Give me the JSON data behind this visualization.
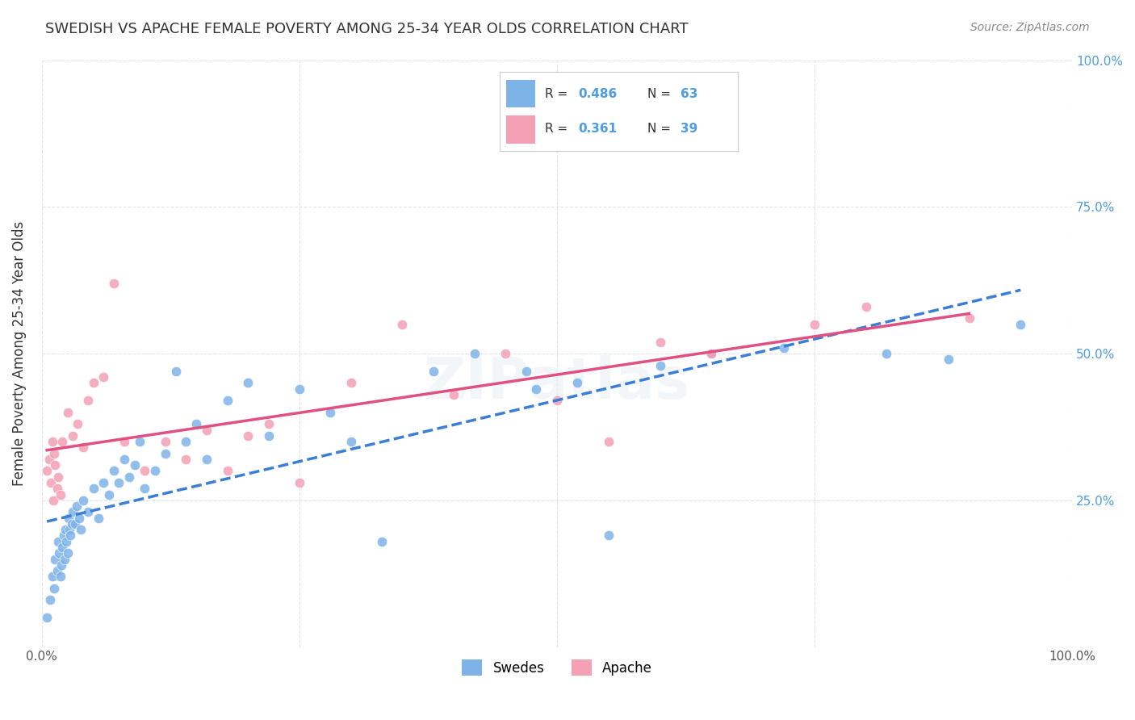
{
  "title": "SWEDISH VS APACHE FEMALE POVERTY AMONG 25-34 YEAR OLDS CORRELATION CHART",
  "source": "Source: ZipAtlas.com",
  "ylabel": "Female Poverty Among 25-34 Year Olds",
  "xlim": [
    0,
    1
  ],
  "ylim": [
    0,
    1
  ],
  "legend_r1": "0.486",
  "legend_n1": "63",
  "legend_r2": "0.361",
  "legend_n2": "39",
  "swedes_color": "#7eb3e8",
  "apache_color": "#f4a0b5",
  "swedes_line_color": "#3a7fd5",
  "apache_line_color": "#e05080",
  "swedes_x": [
    0.005,
    0.008,
    0.01,
    0.012,
    0.013,
    0.015,
    0.016,
    0.017,
    0.018,
    0.019,
    0.02,
    0.021,
    0.022,
    0.023,
    0.024,
    0.025,
    0.026,
    0.027,
    0.028,
    0.029,
    0.03,
    0.032,
    0.034,
    0.036,
    0.038,
    0.04,
    0.045,
    0.05,
    0.055,
    0.06,
    0.065,
    0.07,
    0.075,
    0.08,
    0.085,
    0.09,
    0.095,
    0.1,
    0.11,
    0.12,
    0.13,
    0.14,
    0.15,
    0.16,
    0.18,
    0.2,
    0.22,
    0.25,
    0.28,
    0.3,
    0.33,
    0.38,
    0.42,
    0.47,
    0.48,
    0.52,
    0.55,
    0.6,
    0.65,
    0.72,
    0.82,
    0.88,
    0.95
  ],
  "swedes_y": [
    0.05,
    0.08,
    0.12,
    0.1,
    0.15,
    0.13,
    0.18,
    0.16,
    0.12,
    0.14,
    0.17,
    0.19,
    0.15,
    0.2,
    0.18,
    0.16,
    0.22,
    0.2,
    0.19,
    0.21,
    0.23,
    0.21,
    0.24,
    0.22,
    0.2,
    0.25,
    0.23,
    0.27,
    0.22,
    0.28,
    0.26,
    0.3,
    0.28,
    0.32,
    0.29,
    0.31,
    0.35,
    0.27,
    0.3,
    0.33,
    0.47,
    0.35,
    0.38,
    0.32,
    0.42,
    0.45,
    0.36,
    0.44,
    0.4,
    0.35,
    0.18,
    0.47,
    0.5,
    0.47,
    0.44,
    0.45,
    0.19,
    0.48,
    0.5,
    0.51,
    0.5,
    0.49,
    0.55
  ],
  "apache_x": [
    0.005,
    0.007,
    0.009,
    0.01,
    0.011,
    0.012,
    0.013,
    0.015,
    0.016,
    0.018,
    0.02,
    0.025,
    0.03,
    0.035,
    0.04,
    0.045,
    0.05,
    0.06,
    0.07,
    0.08,
    0.1,
    0.12,
    0.14,
    0.16,
    0.18,
    0.2,
    0.22,
    0.25,
    0.3,
    0.35,
    0.4,
    0.45,
    0.5,
    0.55,
    0.6,
    0.65,
    0.75,
    0.8,
    0.9
  ],
  "apache_y": [
    0.3,
    0.32,
    0.28,
    0.35,
    0.25,
    0.33,
    0.31,
    0.27,
    0.29,
    0.26,
    0.35,
    0.4,
    0.36,
    0.38,
    0.34,
    0.42,
    0.45,
    0.46,
    0.62,
    0.35,
    0.3,
    0.35,
    0.32,
    0.37,
    0.3,
    0.36,
    0.38,
    0.28,
    0.45,
    0.55,
    0.43,
    0.5,
    0.42,
    0.35,
    0.52,
    0.5,
    0.55,
    0.58,
    0.56
  ],
  "watermark": "ZIPatlas",
  "background_color": "#ffffff",
  "grid_color": "#dddddd",
  "right_tick_color": "#4d9de0"
}
